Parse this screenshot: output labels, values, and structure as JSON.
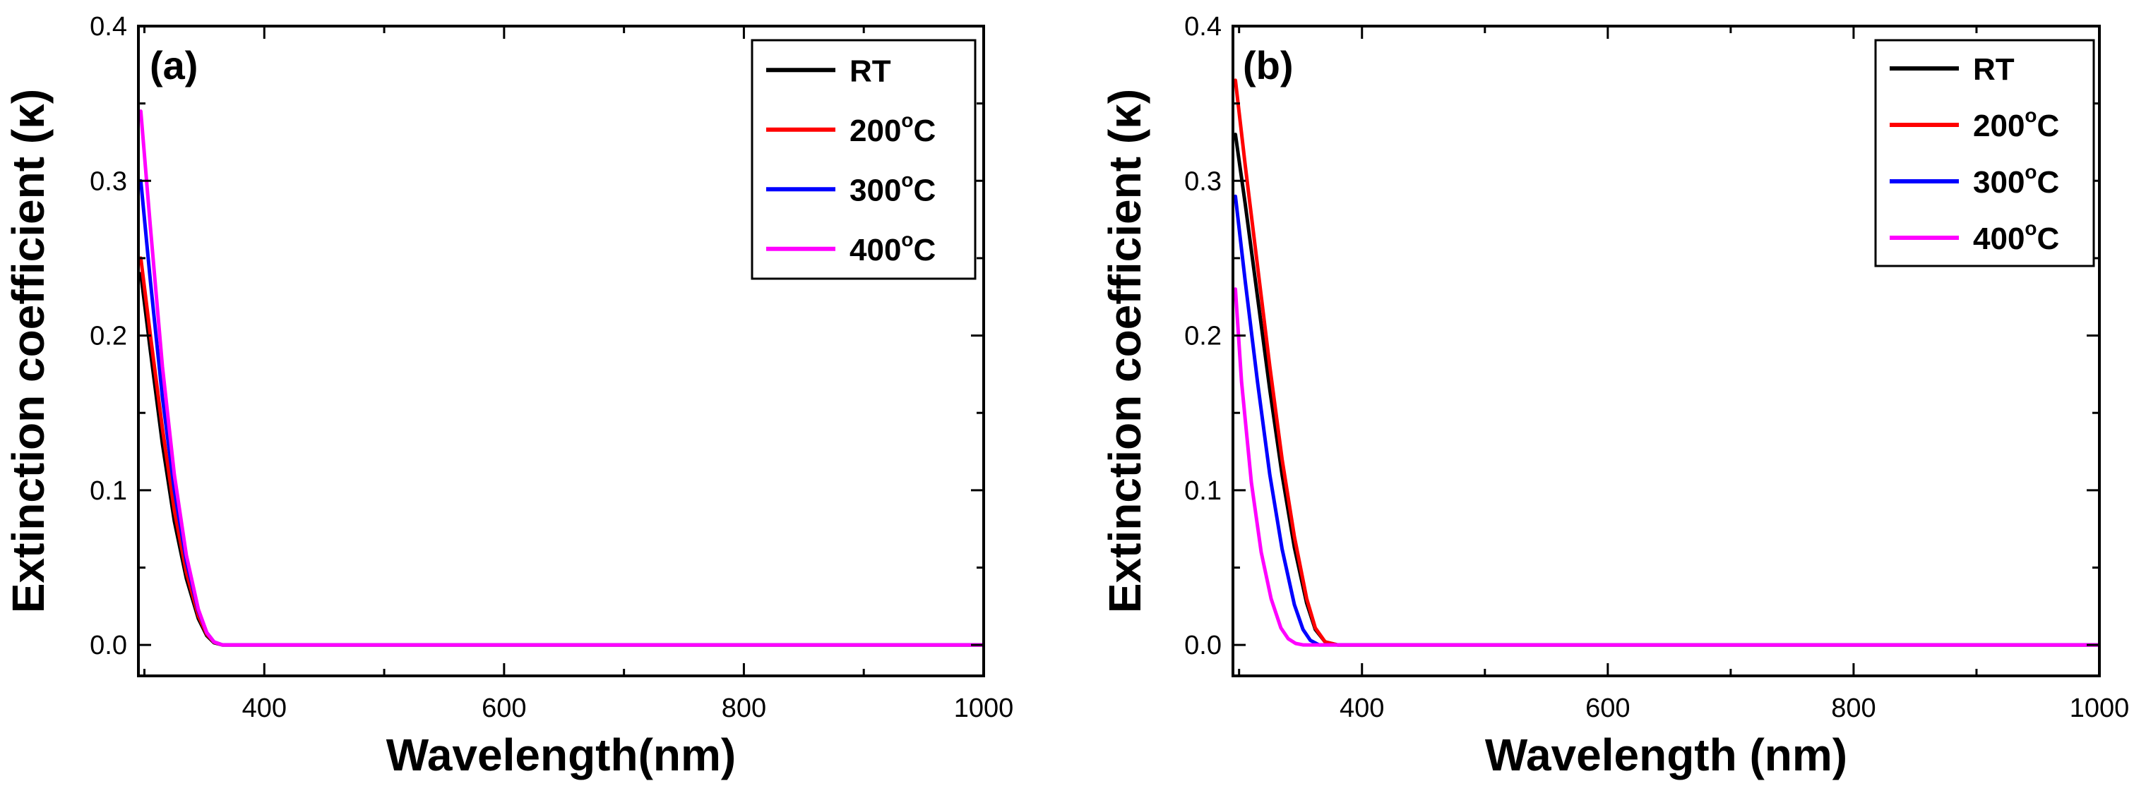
{
  "chart_data": [
    {
      "type": "line",
      "panel_label": "(a)",
      "xlabel": "Wavelength(nm)",
      "ylabel": "Extinction coefficient (κ)",
      "xlim": [
        295,
        1000
      ],
      "ylim": [
        -0.02,
        0.4
      ],
      "xticks": [
        400,
        600,
        800,
        1000
      ],
      "xtick_labels": [
        "400",
        "600",
        "800",
        "1000"
      ],
      "yticks": [
        0.0,
        0.1,
        0.2,
        0.3,
        0.4
      ],
      "ytick_labels": [
        "0.0",
        "0.1",
        "0.2",
        "0.3",
        "0.4"
      ],
      "legend": "top-right",
      "series": [
        {
          "name": "RT",
          "label_main": "RT",
          "label_sup": "",
          "label_tail": "",
          "color": "#000000",
          "x": [
            297,
            305,
            315,
            325,
            335,
            345,
            352,
            358,
            365,
            400,
            600,
            800,
            1000
          ],
          "y": [
            0.24,
            0.19,
            0.13,
            0.08,
            0.043,
            0.017,
            0.006,
            0.0015,
            0.0,
            0.0,
            0.0,
            0.0,
            0.0
          ]
        },
        {
          "name": "200°C",
          "label_main": "200",
          "label_sup": "o",
          "label_tail": "C",
          "color": "#ff0000",
          "x": [
            297,
            305,
            315,
            325,
            335,
            345,
            352,
            358,
            365,
            400,
            600,
            800,
            1000
          ],
          "y": [
            0.25,
            0.2,
            0.14,
            0.087,
            0.047,
            0.019,
            0.007,
            0.0018,
            0.0,
            0.0,
            0.0,
            0.0,
            0.0
          ]
        },
        {
          "name": "300°C",
          "label_main": "300",
          "label_sup": "o",
          "label_tail": "C",
          "color": "#0000ff",
          "x": [
            297,
            305,
            315,
            325,
            335,
            345,
            352,
            358,
            365,
            400,
            600,
            800,
            1000
          ],
          "y": [
            0.3,
            0.235,
            0.16,
            0.1,
            0.054,
            0.022,
            0.008,
            0.002,
            0.0,
            0.0,
            0.0,
            0.0,
            0.0
          ]
        },
        {
          "name": "400°C",
          "label_main": "400",
          "label_sup": "o",
          "label_tail": "C",
          "color": "#ff00ff",
          "x": [
            297,
            305,
            315,
            325,
            335,
            345,
            352,
            358,
            365,
            400,
            600,
            800,
            1000
          ],
          "y": [
            0.345,
            0.27,
            0.18,
            0.11,
            0.058,
            0.023,
            0.008,
            0.002,
            0.0,
            0.0,
            0.0,
            0.0,
            0.0
          ]
        }
      ]
    },
    {
      "type": "line",
      "panel_label": "(b)",
      "xlabel": "Wavelength (nm)",
      "ylabel": "Extinction coefficient (κ)",
      "xlim": [
        295,
        1000
      ],
      "ylim": [
        -0.02,
        0.4
      ],
      "xticks": [
        400,
        600,
        800,
        1000
      ],
      "xtick_labels": [
        "400",
        "600",
        "800",
        "1000"
      ],
      "yticks": [
        0.0,
        0.1,
        0.2,
        0.3,
        0.4
      ],
      "ytick_labels": [
        "0.0",
        "0.1",
        "0.2",
        "0.3",
        "0.4"
      ],
      "legend": "top-right",
      "series": [
        {
          "name": "RT",
          "label_main": "RT",
          "label_sup": "",
          "label_tail": "",
          "color": "#000000",
          "x": [
            297,
            305,
            315,
            325,
            335,
            345,
            355,
            362,
            370,
            380,
            400,
            600,
            800,
            1000
          ],
          "y": [
            0.33,
            0.285,
            0.225,
            0.165,
            0.11,
            0.063,
            0.027,
            0.01,
            0.002,
            0.0,
            0.0,
            0.0,
            0.0,
            0.0
          ]
        },
        {
          "name": "200°C",
          "label_main": "200",
          "label_sup": "o",
          "label_tail": "C",
          "color": "#ff0000",
          "x": [
            297,
            305,
            315,
            325,
            335,
            345,
            355,
            362,
            370,
            380,
            400,
            600,
            800,
            1000
          ],
          "y": [
            0.365,
            0.31,
            0.245,
            0.18,
            0.12,
            0.07,
            0.03,
            0.011,
            0.002,
            0.0,
            0.0,
            0.0,
            0.0,
            0.0
          ]
        },
        {
          "name": "300°C",
          "label_main": "300",
          "label_sup": "o",
          "label_tail": "C",
          "color": "#0000ff",
          "x": [
            297,
            305,
            315,
            325,
            335,
            345,
            352,
            358,
            365,
            400,
            600,
            800,
            1000
          ],
          "y": [
            0.29,
            0.235,
            0.17,
            0.11,
            0.062,
            0.026,
            0.01,
            0.003,
            0.0,
            0.0,
            0.0,
            0.0,
            0.0
          ]
        },
        {
          "name": "400°C",
          "label_main": "400",
          "label_sup": "o",
          "label_tail": "C",
          "color": "#ff00ff",
          "x": [
            297,
            302,
            310,
            318,
            326,
            334,
            340,
            346,
            352,
            400,
            600,
            800,
            1000
          ],
          "y": [
            0.23,
            0.17,
            0.105,
            0.06,
            0.03,
            0.011,
            0.004,
            0.001,
            0.0,
            0.0,
            0.0,
            0.0,
            0.0
          ]
        }
      ]
    }
  ]
}
